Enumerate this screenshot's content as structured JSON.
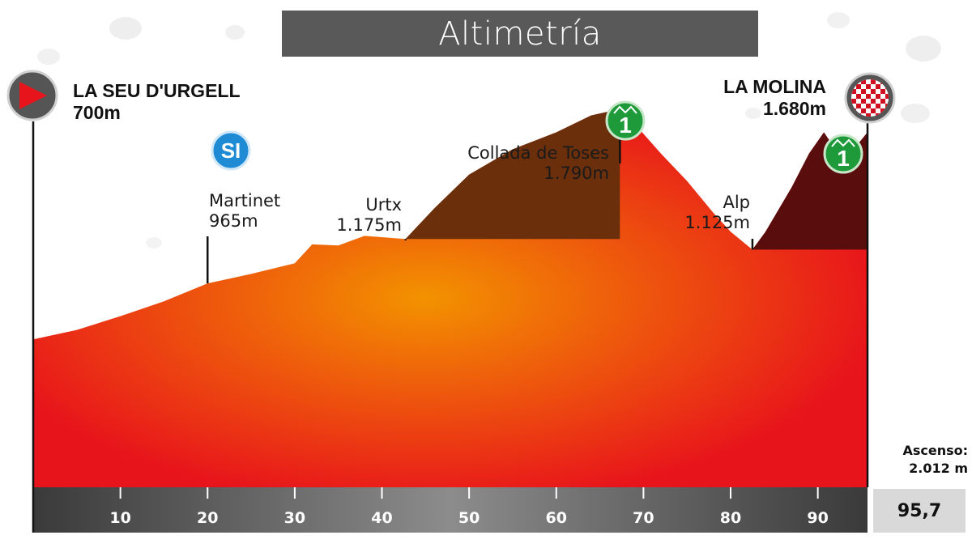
{
  "title": "Altimetría",
  "start": {
    "name": "LA SEU D'URGELL",
    "altitude": "700m",
    "icon": "start-flag-icon",
    "color": "#e8141b"
  },
  "finish": {
    "name": "LA MOLINA",
    "altitude": "1.680m",
    "icon": "finish-checkered-icon"
  },
  "points": [
    {
      "name": "Martinet",
      "altitude": "965m",
      "km": 20
    },
    {
      "name": "Urtx",
      "altitude": "1.175m",
      "km": 42.7
    },
    {
      "name": "Collada de Toses",
      "altitude": "1.790m",
      "km": 67.3
    },
    {
      "name": "Alp",
      "altitude": "1.125m",
      "km": 82.5
    }
  ],
  "sprint_badge": {
    "label": "SI",
    "icon": "intermediate-sprint-icon",
    "color": "#1e8bd4"
  },
  "climb_badges": [
    {
      "label": "1",
      "icon": "mountain-category-1-icon",
      "color": "#1f9a3a"
    },
    {
      "label": "1",
      "icon": "mountain-category-1-icon",
      "color": "#1f9a3a"
    }
  ],
  "ascent": {
    "label": "Ascenso:",
    "value": "2.012 m"
  },
  "total_distance": "95,7",
  "colors": {
    "profile_main": "#e8141b",
    "profile_center": "#f39200",
    "climb_1": "#6b2f0c",
    "climb_2": "#5a0d0d"
  },
  "chart_data": {
    "type": "area",
    "title": "Altimetría",
    "xlabel": "",
    "ylabel": "",
    "x_ticks": [
      10,
      20,
      30,
      40,
      50,
      60,
      70,
      80,
      90
    ],
    "xlim": [
      0,
      95.7
    ],
    "ylim": [
      0,
      2000
    ],
    "grid": false,
    "x": [
      0,
      5,
      10,
      15,
      20,
      25,
      30,
      32,
      35,
      38,
      42.7,
      46,
      50,
      55,
      60,
      64,
      67.3,
      69,
      72,
      75,
      78,
      80,
      82.5,
      84,
      87,
      89,
      90.7,
      92,
      93.5,
      94.5,
      95.7
    ],
    "values": [
      700,
      745,
      810,
      880,
      965,
      1010,
      1060,
      1150,
      1145,
      1190,
      1175,
      1320,
      1480,
      1600,
      1680,
      1760,
      1790,
      1720,
      1580,
      1450,
      1300,
      1210,
      1125,
      1210,
      1420,
      1580,
      1680,
      1600,
      1640,
      1620,
      1680
    ],
    "climbs": [
      {
        "start_km": 42.7,
        "end_km": 67.3,
        "category": "1"
      },
      {
        "start_km": 82.5,
        "end_km": 95.7,
        "category": "1"
      }
    ]
  }
}
